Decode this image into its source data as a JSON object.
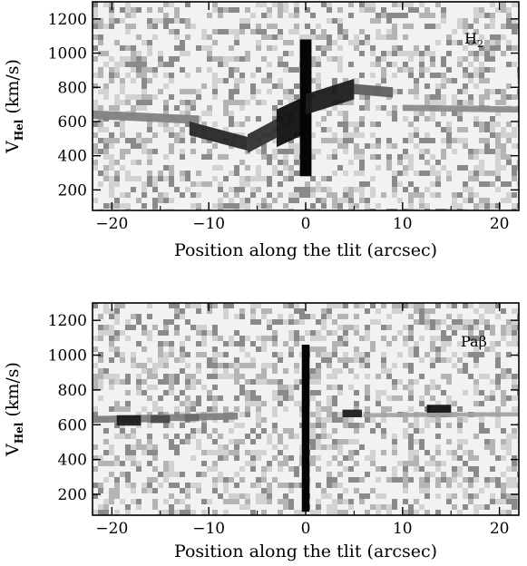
{
  "chart_data": [
    {
      "type": "heatmap",
      "title": "",
      "panel_label": "H",
      "panel_label_sub": "2",
      "xlabel": "Position along the tlit (arcsec)",
      "ylabel": "V",
      "ylabel_sub": "Hel",
      "ylabel_unit": "(km/s)",
      "xlim": [
        -22,
        22
      ],
      "ylim": [
        80,
        1300
      ],
      "xticks": [
        -20,
        -10,
        0,
        10,
        20
      ],
      "yticks": [
        200,
        400,
        600,
        800,
        1000,
        1200
      ],
      "grid": false,
      "colormap": "greyscale, dark = strong emission",
      "features": [
        {
          "x_start": -22,
          "x_end": -11,
          "v_start": 640,
          "v_end": 610,
          "v_half_width": 25,
          "intensity": 0.45
        },
        {
          "x_start": -12,
          "x_end": -6,
          "v_start": 560,
          "v_end": 470,
          "v_half_width": 40,
          "intensity": 0.85
        },
        {
          "x_start": -6,
          "x_end": -3,
          "v_start": 470,
          "v_end": 560,
          "v_half_width": 55,
          "intensity": 0.8
        },
        {
          "x_start": -3,
          "x_end": 0,
          "v_start": 560,
          "v_end": 640,
          "v_half_width": 110,
          "intensity": 0.95
        },
        {
          "x_start": -0.6,
          "x_end": 0.6,
          "v_start": 280,
          "v_end": 1080,
          "v_half_width": 0,
          "intensity": 1.0
        },
        {
          "x_start": 0,
          "x_end": 5,
          "v_start": 700,
          "v_end": 790,
          "v_half_width": 60,
          "intensity": 0.9
        },
        {
          "x_start": 5,
          "x_end": 9,
          "v_start": 790,
          "v_end": 770,
          "v_half_width": 30,
          "intensity": 0.6
        },
        {
          "x_start": 10,
          "x_end": 22,
          "v_start": 680,
          "v_end": 670,
          "v_half_width": 18,
          "intensity": 0.4
        }
      ]
    },
    {
      "type": "heatmap",
      "title": "",
      "panel_label": "Paβ",
      "xlabel": "Position along the tlit (arcsec)",
      "ylabel": "V",
      "ylabel_sub": "Hel",
      "ylabel_unit": "(km/s)",
      "xlim": [
        -22,
        22
      ],
      "ylim": [
        80,
        1300
      ],
      "xticks": [
        -20,
        -10,
        0,
        10,
        20
      ],
      "yticks": [
        200,
        400,
        600,
        800,
        1000,
        1200
      ],
      "grid": false,
      "colormap": "greyscale, dark = strong emission",
      "features": [
        {
          "x_start": -22,
          "x_end": -7,
          "v_start": 630,
          "v_end": 650,
          "v_half_width": 20,
          "intensity": 0.45
        },
        {
          "x_start": -19.5,
          "x_end": -17,
          "v_start": 625,
          "v_end": 625,
          "v_half_width": 30,
          "intensity": 0.9
        },
        {
          "x_start": -16,
          "x_end": -14,
          "v_start": 632,
          "v_end": 632,
          "v_half_width": 22,
          "intensity": 0.7
        },
        {
          "x_start": -12.5,
          "x_end": -11,
          "v_start": 640,
          "v_end": 640,
          "v_half_width": 20,
          "intensity": 0.55
        },
        {
          "x_start": -0.4,
          "x_end": 0.4,
          "v_start": 100,
          "v_end": 1060,
          "v_half_width": 0,
          "intensity": 1.0
        },
        {
          "x_start": 3.8,
          "x_end": 5.8,
          "v_start": 665,
          "v_end": 665,
          "v_half_width": 22,
          "intensity": 0.9
        },
        {
          "x_start": 12.5,
          "x_end": 15,
          "v_start": 680,
          "v_end": 680,
          "v_half_width": 35,
          "intensity": 0.95
        },
        {
          "x_start": 6,
          "x_end": 22,
          "v_start": 655,
          "v_end": 660,
          "v_half_width": 12,
          "intensity": 0.3
        }
      ]
    }
  ]
}
